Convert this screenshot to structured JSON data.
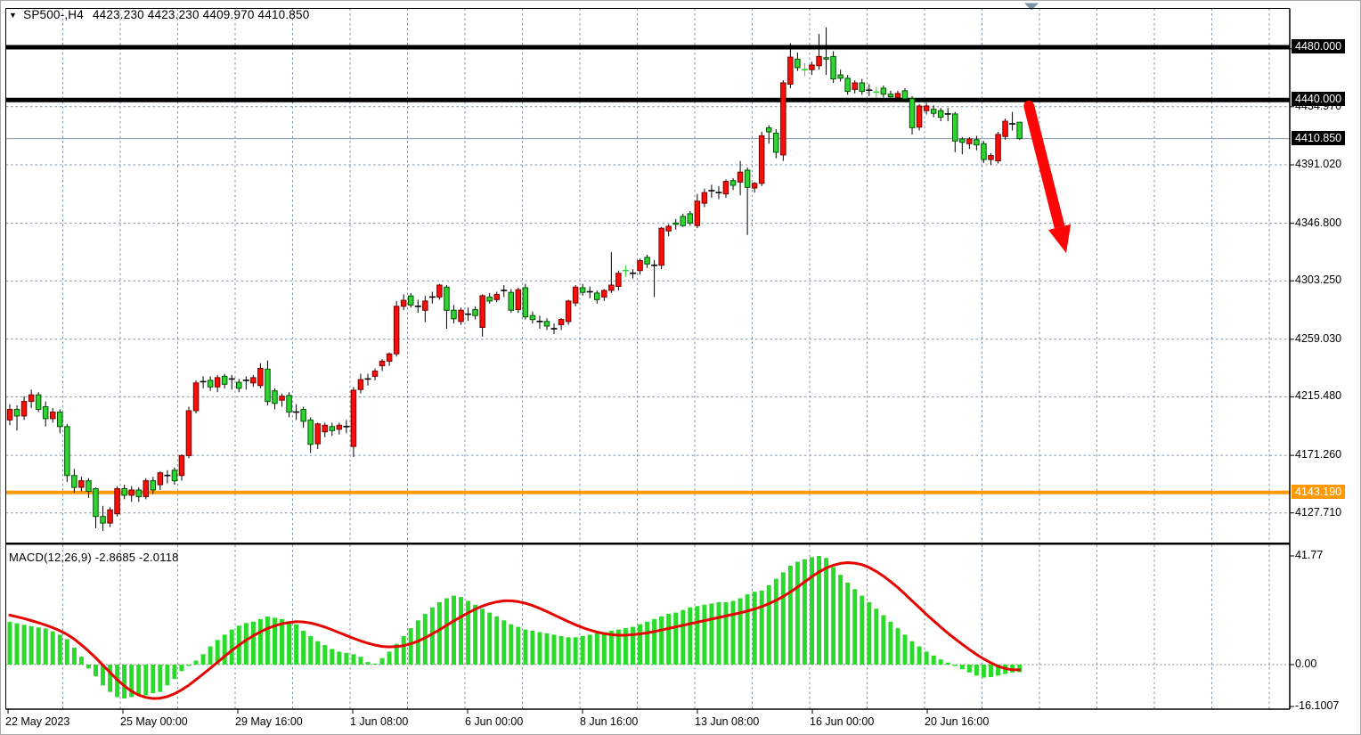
{
  "window": {
    "title_symbol": "SP500-,H4",
    "title_ohlc": "4423.230 4423.230 4409.970 4410.850"
  },
  "indicator_label": "MACD(12,26,9) -2.8685 -2.0118",
  "colors": {
    "background": "#ffffff",
    "grid": "#7d93a8",
    "bull_body": "#fb0e07",
    "bull_border": "#740000",
    "bear_body": "#2fd433",
    "bear_border": "#005400",
    "wick": "#000000",
    "doji_lime": "#35d435",
    "level_black": "#000000",
    "level_orange": "#ff9902",
    "price_line": "#8395a5",
    "macd_histogram": "#2bdb2b",
    "macd_signal": "#e60400",
    "arrow": "#fb0505",
    "badge_black_bg": "#000000",
    "badge_orange_bg": "#ff9902",
    "marker_triangle": "#7b93a5",
    "frame": "#000000"
  },
  "price_axis": {
    "plain_labels": [
      {
        "text": "4434.970",
        "price": 4434.97
      },
      {
        "text": "4391.020",
        "price": 4391.02
      },
      {
        "text": "4346.800",
        "price": 4346.8
      },
      {
        "text": "4303.250",
        "price": 4303.25
      },
      {
        "text": "4259.030",
        "price": 4259.03
      },
      {
        "text": "4215.480",
        "price": 4215.48
      },
      {
        "text": "4171.260",
        "price": 4171.26
      },
      {
        "text": "4127.710",
        "price": 4127.71
      }
    ],
    "badges": [
      {
        "text": "4480.000",
        "price": 4480.0,
        "bg": "black"
      },
      {
        "text": "4440.000",
        "price": 4440.0,
        "bg": "black"
      },
      {
        "text": "4410.850",
        "price": 4410.85,
        "bg": "black"
      },
      {
        "text": "4143.190",
        "price": 4143.19,
        "bg": "orange"
      }
    ]
  },
  "macd_axis": {
    "labels": [
      {
        "text": "41.77",
        "value": 41.77
      },
      {
        "text": "0.00",
        "value": 0
      },
      {
        "text": "-16.1007",
        "value": -16.1007
      }
    ]
  },
  "time_axis": {
    "labels": [
      "22 May 2023",
      "25 May 00:00",
      "29 May 16:00",
      "1 Jun 08:00",
      "6 Jun 00:00",
      "8 Jun 16:00",
      "13 Jun 08:00",
      "16 Jun 00:00",
      "20 Jun 16:00"
    ]
  },
  "chart_data": {
    "type": "candlestick",
    "symbol": "SP500-",
    "timeframe": "H4",
    "title": "SP500-,H4 4423.230 4423.230 4409.970 4410.850",
    "ohlc_display": {
      "open": "4423.230",
      "high": "4423.230",
      "low": "4409.970",
      "close": "4410.850"
    },
    "y_range": [
      4100,
      4510
    ],
    "grid_prices": [
      4478.74,
      4434.97,
      4391.02,
      4346.8,
      4303.25,
      4259.03,
      4215.48,
      4171.26,
      4127.71
    ],
    "levels": [
      {
        "price": 4480.0,
        "label": "4480.000",
        "type": "resistance",
        "color": "#000000",
        "thickness": 5
      },
      {
        "price": 4440.0,
        "label": "4440.000",
        "type": "resistance",
        "color": "#000000",
        "thickness": 5
      },
      {
        "price": 4143.19,
        "label": "4143.190",
        "type": "support",
        "color": "#ff9902",
        "thickness": 4
      },
      {
        "price": 4410.85,
        "label": "4410.850",
        "type": "current-price",
        "color": "#8395a5",
        "thickness": 1
      }
    ],
    "annotations": [
      {
        "type": "arrow",
        "direction": "down-right",
        "color": "#fb0505",
        "from_price": 4437,
        "to_price": 4302
      },
      {
        "type": "scroll-marker-triangle",
        "color": "#7b93a5"
      }
    ],
    "candles": [
      [
        4198,
        4210,
        4194,
        4206
      ],
      [
        4206,
        4209,
        4190,
        4201
      ],
      [
        4201,
        4216,
        4198,
        4212
      ],
      [
        4212,
        4221,
        4207,
        4217
      ],
      [
        4217,
        4219,
        4204,
        4206
      ],
      [
        4208,
        4212,
        4193,
        4199
      ],
      [
        4199,
        4207,
        4196,
        4204
      ],
      [
        4204,
        4206,
        4188,
        4193
      ],
      [
        4193,
        4195,
        4151,
        4156
      ],
      [
        4156,
        4161,
        4143,
        4147
      ],
      [
        4147,
        4155,
        4144,
        4152
      ],
      [
        4152,
        4154,
        4139,
        4144
      ],
      [
        4146,
        4147,
        4116,
        4125
      ],
      [
        4125,
        4133,
        4114,
        4120
      ],
      [
        4120,
        4132,
        4117,
        4130
      ],
      [
        4127,
        4148,
        4125,
        4146
      ],
      [
        4146,
        4149,
        4138,
        4141
      ],
      [
        4141,
        4148,
        4136,
        4145
      ],
      [
        4145,
        4147,
        4136,
        4140
      ],
      [
        4140,
        4154,
        4138,
        4152
      ],
      [
        4152,
        4155,
        4142,
        4145
      ],
      [
        4149,
        4159,
        4145,
        4158
      ],
      [
        4156,
        4160,
        4150,
        4156
      ],
      [
        4160,
        4162,
        4149,
        4152
      ],
      [
        4156,
        4172,
        4152,
        4171
      ],
      [
        4171,
        4208,
        4169,
        4205
      ],
      [
        4205,
        4228,
        4203,
        4226
      ],
      [
        4227,
        4231,
        4222,
        4227
      ],
      [
        4228,
        4231,
        4220,
        4223
      ],
      [
        4223,
        4232,
        4219,
        4230
      ],
      [
        4231,
        4233,
        4222,
        4225
      ],
      [
        4229,
        4232,
        4221,
        4229
      ],
      [
        4226.5,
        4229,
        4219,
        4222
      ],
      [
        4228,
        4231,
        4221,
        4228
      ],
      [
        4226,
        4232,
        4223,
        4230
      ],
      [
        4224,
        4241,
        4222,
        4237
      ],
      [
        4236.5,
        4243,
        4209,
        4212
      ],
      [
        4220,
        4222,
        4206,
        4210.5
      ],
      [
        4213,
        4218,
        4208,
        4216
      ],
      [
        4216.5,
        4219,
        4200,
        4204
      ],
      [
        4204,
        4210,
        4198,
        4204
      ],
      [
        4206,
        4208,
        4192,
        4197
      ],
      [
        4198,
        4200,
        4173,
        4179.5
      ],
      [
        4180,
        4196,
        4176,
        4195
      ],
      [
        4189,
        4196,
        4185,
        4194
      ],
      [
        4193,
        4196,
        4186,
        4190
      ],
      [
        4191,
        4196,
        4187,
        4194
      ],
      [
        4193,
        4198,
        4188,
        4193
      ],
      [
        4178,
        4223,
        4170,
        4220.5
      ],
      [
        4221,
        4233,
        4218,
        4228.5
      ],
      [
        4229,
        4233,
        4224,
        4229
      ],
      [
        4231,
        4237,
        4228,
        4235
      ],
      [
        4239,
        4244,
        4235,
        4242.5
      ],
      [
        4242.5,
        4249,
        4239,
        4248
      ],
      [
        4248,
        4288,
        4246,
        4284
      ],
      [
        4284,
        4293,
        4281,
        4288.5
      ],
      [
        4291.8,
        4294,
        4283,
        4285
      ],
      [
        4284,
        4289,
        4279,
        4284
      ],
      [
        4281,
        4292,
        4272,
        4288
      ],
      [
        4291,
        4295,
        4286,
        4291
      ],
      [
        4291,
        4301,
        4289,
        4300
      ],
      [
        4298.5,
        4300,
        4267,
        4281
      ],
      [
        4281,
        4285,
        4271,
        4274.5
      ],
      [
        4272.5,
        4283,
        4270,
        4281
      ],
      [
        4278,
        4283,
        4273,
        4278
      ],
      [
        4281.5,
        4284,
        4274,
        4277
      ],
      [
        4268,
        4293,
        4261,
        4292
      ],
      [
        4291,
        4294,
        4286,
        4288
      ],
      [
        4289,
        4295,
        4287,
        4293
      ],
      [
        4296,
        4300,
        4291,
        4296
      ],
      [
        4294.5,
        4297,
        4279,
        4281
      ],
      [
        4281.5,
        4298,
        4279,
        4296.5
      ],
      [
        4298,
        4301,
        4274,
        4276
      ],
      [
        4277,
        4280,
        4271,
        4274
      ],
      [
        4272.5,
        4277,
        4267,
        4272.5
      ],
      [
        4272.5,
        4275,
        4266,
        4269
      ],
      [
        4267,
        4271,
        4263,
        4267
      ],
      [
        4270,
        4275,
        4266,
        4274
      ],
      [
        4272.5,
        4289,
        4270,
        4288
      ],
      [
        4286.5,
        4300,
        4284,
        4298.5
      ],
      [
        4298,
        4301,
        4292,
        4294.5
      ],
      [
        4295,
        4299,
        4290,
        4295
      ],
      [
        4294,
        4296,
        4286,
        4289
      ],
      [
        4291,
        4297,
        4288,
        4296
      ],
      [
        4296,
        4325,
        4294,
        4300
      ],
      [
        4299,
        4311,
        4296,
        4309
      ],
      [
        4311,
        4315,
        4306,
        4311,
        "g"
      ],
      [
        4309,
        4312,
        4305,
        4309
      ],
      [
        4311,
        4320,
        4308,
        4318.5
      ],
      [
        4321,
        4323,
        4313,
        4316
      ],
      [
        4315,
        4319,
        4291,
        4315
      ],
      [
        4315,
        4344,
        4312,
        4343
      ],
      [
        4341,
        4346,
        4337,
        4344.5
      ],
      [
        4347,
        4350,
        4342,
        4346
      ],
      [
        4352,
        4354,
        4344,
        4345
      ],
      [
        4354,
        4356,
        4345,
        4347
      ],
      [
        4345,
        4369,
        4343,
        4363.5
      ],
      [
        4362,
        4373,
        4359,
        4370
      ],
      [
        4371.5,
        4376,
        4366,
        4371.5
      ],
      [
        4370,
        4375,
        4365,
        4370
      ],
      [
        4369,
        4380,
        4366,
        4378.5
      ],
      [
        4379,
        4381,
        4372,
        4375.5
      ],
      [
        4378,
        4394,
        4368,
        4385.5
      ],
      [
        4387,
        4389,
        4338,
        4374
      ],
      [
        4373.5,
        4378,
        4370,
        4377
      ],
      [
        4377,
        4416,
        4375,
        4413
      ],
      [
        4419,
        4421,
        4407,
        4416
      ],
      [
        4415,
        4418,
        4396,
        4400.5
      ],
      [
        4398.5,
        4455,
        4394,
        4453
      ],
      [
        4452,
        4483,
        4449,
        4472.5
      ],
      [
        4471,
        4476,
        4462,
        4464.5
      ],
      [
        4463,
        4468,
        4458,
        4463,
        "g"
      ],
      [
        4463,
        4469,
        4459,
        4466.5
      ],
      [
        4466,
        4490,
        4463,
        4473
      ],
      [
        4472,
        4495,
        4459,
        4471
      ],
      [
        4473,
        4477,
        4453,
        4456
      ],
      [
        4459,
        4463,
        4454,
        4456.5
      ],
      [
        4456.5,
        4459,
        4444,
        4446.5
      ],
      [
        4448,
        4455,
        4445,
        4453
      ],
      [
        4453,
        4456,
        4444,
        4446.5
      ],
      [
        4447.5,
        4452,
        4443,
        4447.5
      ],
      [
        4446,
        4450,
        4442,
        4446,
        "g"
      ],
      [
        4449,
        4451,
        4442,
        4444.5
      ],
      [
        4444.5,
        4447,
        4440,
        4442.5
      ],
      [
        4442,
        4447,
        4439,
        4445
      ],
      [
        4447,
        4449,
        4439,
        4441
      ],
      [
        4441,
        4443,
        4414,
        4419
      ],
      [
        4419.5,
        4437,
        4417,
        4435.5
      ],
      [
        4432,
        4438,
        4429,
        4435.5
      ],
      [
        4433,
        4436,
        4427,
        4430
      ],
      [
        4432,
        4434,
        4424,
        4427
      ],
      [
        4429.5,
        4434,
        4424,
        4429.5
      ],
      [
        4429.5,
        4431,
        4400.5,
        4409
      ],
      [
        4410.5,
        4412,
        4399,
        4408
      ],
      [
        4407,
        4412,
        4403,
        4410.5
      ],
      [
        4410,
        4413,
        4402,
        4406
      ],
      [
        4407,
        4409,
        4392.5,
        4395
      ],
      [
        4395,
        4400,
        4391,
        4398
      ],
      [
        4394,
        4416,
        4392,
        4414
      ],
      [
        4412.5,
        4426,
        4410,
        4424
      ],
      [
        4422,
        4431,
        4417,
        4422
      ],
      [
        4423.23,
        4423.23,
        4409.97,
        4410.85
      ]
    ],
    "indicator": {
      "name": "MACD",
      "params": "12,26,9",
      "label": "MACD(12,26,9) -2.8685 -2.0118",
      "current_values": [
        -2.8685,
        -2.0118
      ],
      "axis_values": [
        41.77,
        0,
        -16.1007
      ],
      "histogram": [
        16.5,
        15.9,
        15.3,
        14.8,
        14.3,
        13.9,
        12.8,
        11.5,
        9.8,
        6.5,
        3.0,
        -1.5,
        -4.5,
        -8.0,
        -10.5,
        -12.5,
        -13.0,
        -12.5,
        -11.5,
        -11.8,
        -11.0,
        -10.5,
        -8.0,
        -5.5,
        -2.5,
        -0.5,
        1.5,
        4.0,
        7.0,
        9.5,
        11.5,
        13.5,
        15.0,
        16.0,
        16.5,
        17.5,
        18.5,
        18.0,
        17.5,
        16.5,
        15.5,
        13.0,
        11.0,
        9.0,
        7.5,
        6.0,
        5.0,
        4.5,
        4.0,
        3.0,
        1.0,
        0.4,
        2.5,
        5.0,
        8.0,
        11.0,
        14.0,
        17.0,
        19.5,
        22.0,
        24.0,
        25.5,
        26.5,
        26.0,
        24.5,
        23.0,
        21.5,
        20.0,
        18.5,
        17.0,
        15.5,
        14.5,
        13.5,
        13.0,
        12.5,
        12.0,
        11.5,
        11.0,
        10.5,
        10.5,
        11.0,
        11.5,
        12.0,
        12.5,
        13.0,
        13.5,
        14.0,
        14.5,
        15.5,
        16.5,
        17.5,
        18.5,
        19.5,
        20.0,
        21.0,
        22.0,
        22.5,
        23.0,
        23.5,
        24.0,
        24.0,
        24.5,
        25.5,
        27.0,
        28.0,
        28.5,
        30.5,
        33.0,
        35.5,
        38.0,
        39.5,
        40.5,
        41.3,
        41.77,
        41.0,
        37.5,
        34.5,
        31.5,
        29.0,
        26.5,
        24.0,
        21.5,
        19.0,
        16.5,
        14.0,
        11.5,
        9.0,
        7.0,
        5.0,
        3.5,
        2.0,
        0.8,
        -0.5,
        -1.8,
        -3.0,
        -4.2,
        -5.0,
        -4.8,
        -4.2,
        -3.6,
        -3.0,
        -2.8685
      ],
      "signal": [
        19.0,
        18.4,
        17.7,
        16.9,
        16.1,
        15.2,
        14.2,
        13.0,
        11.6,
        9.8,
        7.6,
        5.2,
        2.6,
        -0.2,
        -3.0,
        -5.8,
        -8.2,
        -10.2,
        -11.7,
        -12.6,
        -13.0,
        -12.9,
        -12.3,
        -11.2,
        -9.7,
        -7.9,
        -5.8,
        -3.6,
        -1.4,
        0.9,
        3.2,
        5.4,
        7.5,
        9.4,
        11.1,
        12.6,
        13.9,
        14.9,
        15.7,
        16.2,
        16.5,
        16.4,
        16.0,
        15.3,
        14.4,
        13.4,
        12.3,
        11.2,
        10.1,
        9.1,
        8.2,
        7.5,
        7.0,
        6.8,
        6.9,
        7.3,
        8.0,
        9.0,
        10.3,
        11.8,
        13.4,
        15.1,
        16.8,
        18.4,
        19.9,
        21.3,
        22.5,
        23.4,
        24.1,
        24.5,
        24.5,
        24.2,
        23.6,
        22.7,
        21.6,
        20.4,
        19.1,
        17.8,
        16.5,
        15.3,
        14.2,
        13.3,
        12.5,
        11.9,
        11.5,
        11.3,
        11.3,
        11.5,
        11.8,
        12.2,
        12.7,
        13.3,
        13.9,
        14.5,
        15.1,
        15.7,
        16.3,
        16.9,
        17.5,
        18.1,
        18.7,
        19.3,
        19.9,
        20.6,
        21.4,
        22.3,
        23.4,
        24.7,
        26.2,
        27.9,
        29.8,
        31.8,
        33.8,
        35.6,
        37.1,
        38.2,
        38.9,
        39.2,
        39.0,
        38.4,
        37.3,
        35.8,
        34.0,
        31.9,
        29.6,
        27.1,
        24.5,
        21.9,
        19.3,
        16.8,
        14.4,
        12.1,
        9.9,
        7.8,
        5.8,
        3.9,
        2.2,
        0.7,
        -0.6,
        -1.5,
        -2.0,
        -2.0118
      ]
    },
    "x_labels": [
      "22 May 2023",
      "25 May 00:00",
      "29 May 16:00",
      "1 Jun 08:00",
      "6 Jun 00:00",
      "8 Jun 16:00",
      "13 Jun 08:00",
      "16 Jun 00:00",
      "20 Jun 16:00"
    ]
  }
}
